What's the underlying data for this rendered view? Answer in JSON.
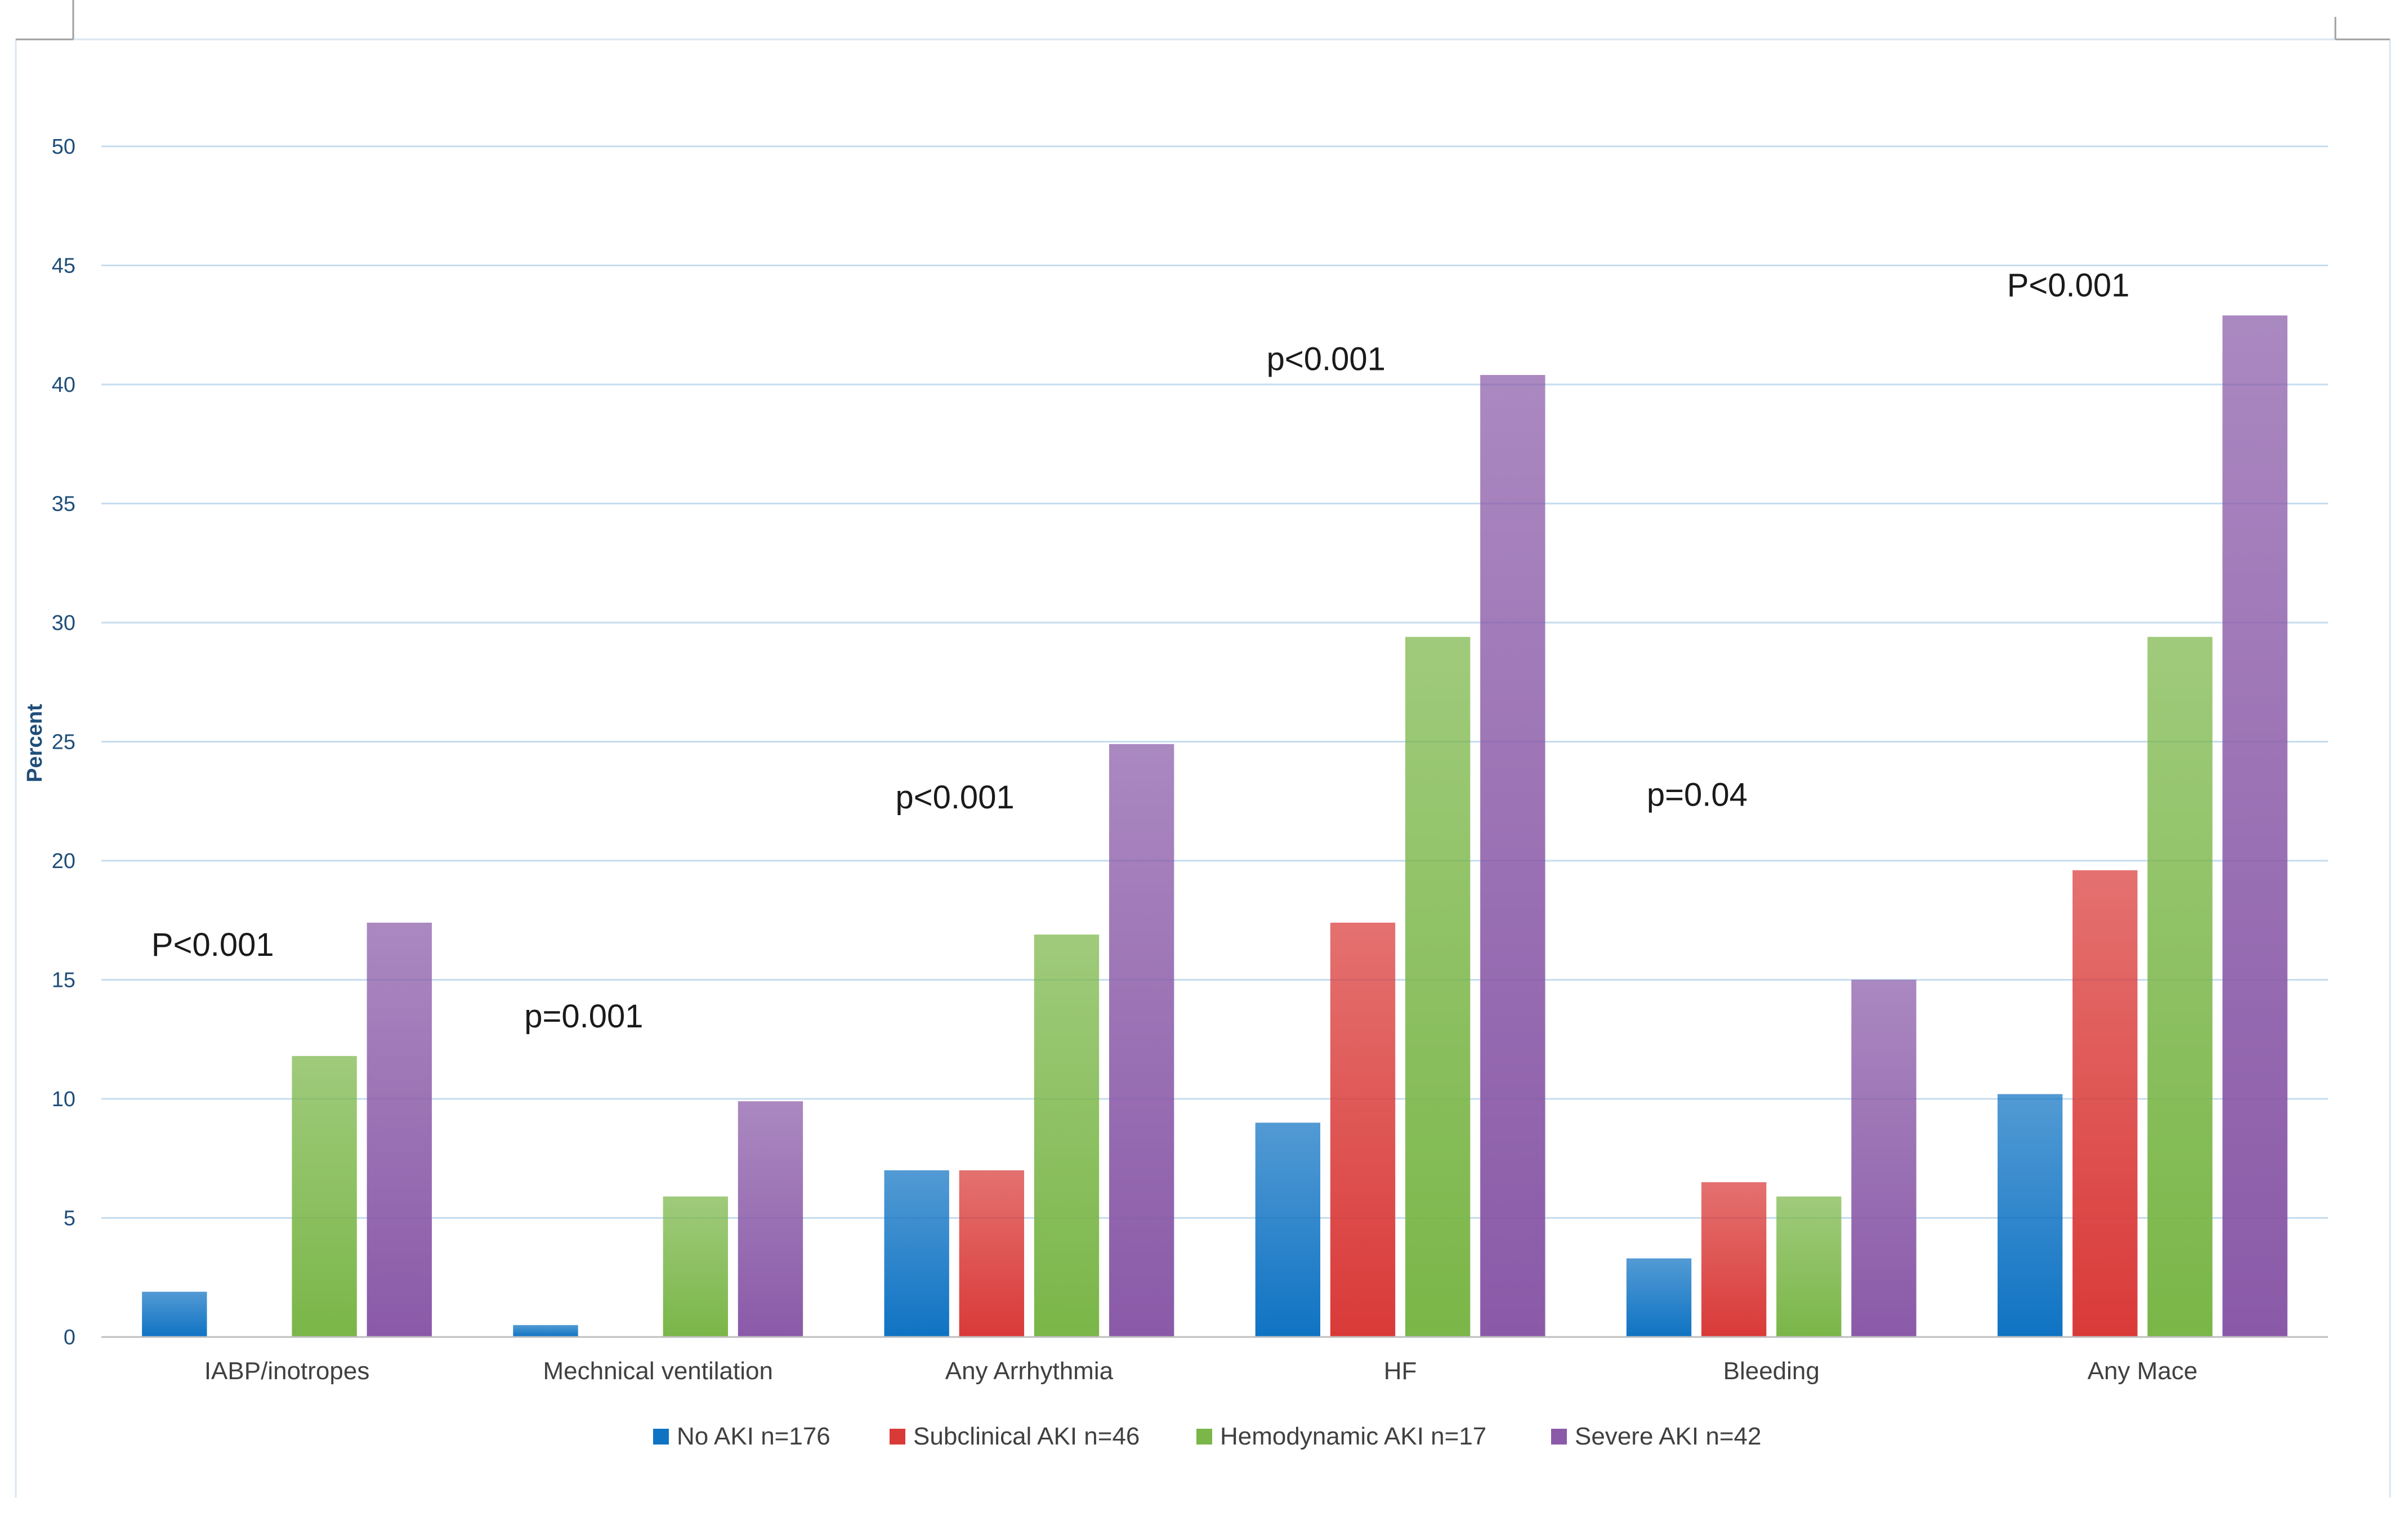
{
  "chart_data": {
    "type": "bar",
    "title": "",
    "xlabel": "",
    "ylabel": "Percent",
    "ylim": [
      0,
      50
    ],
    "yticks": [
      0,
      5,
      10,
      15,
      20,
      25,
      30,
      35,
      40,
      45,
      50
    ],
    "grid": true,
    "legend_position": "bottom",
    "categories": [
      "IABP/inotropes",
      "Mechnical ventilation",
      "Any Arrhythmia",
      "HF",
      "Bleeding",
      "Any Mace"
    ],
    "series": [
      {
        "name": "No AKI n=176",
        "color": "#0f73c3",
        "values": [
          1.9,
          0.5,
          7.0,
          9.0,
          3.3,
          10.2
        ]
      },
      {
        "name": "Subclinical AKI n=46",
        "color": "#d93a38",
        "values": [
          0,
          0,
          7.0,
          17.4,
          6.5,
          19.6
        ]
      },
      {
        "name": "Hemodynamic AKI n=17",
        "color": "#7ab648",
        "values": [
          11.8,
          5.9,
          16.9,
          29.4,
          5.9,
          29.4
        ]
      },
      {
        "name": "Severe AKI n=42",
        "color": "#8a5aa8",
        "values": [
          17.4,
          9.9,
          24.9,
          40.4,
          15.0,
          42.9
        ]
      }
    ],
    "annotations": [
      {
        "category": "IABP/inotropes",
        "text": "P<0.001",
        "y": 16
      },
      {
        "category": "Mechnical ventilation",
        "text": "p=0.001",
        "y": 13
      },
      {
        "category": "Any Arrhythmia",
        "text": "p<0.001",
        "y": 22.2
      },
      {
        "category": "HF",
        "text": "p<0.001",
        "y": 40.6
      },
      {
        "category": "Bleeding",
        "text": "p=0.04",
        "y": 22.3
      },
      {
        "category": "Any Mace",
        "text": "P<0.001",
        "y": 43.7
      }
    ]
  }
}
